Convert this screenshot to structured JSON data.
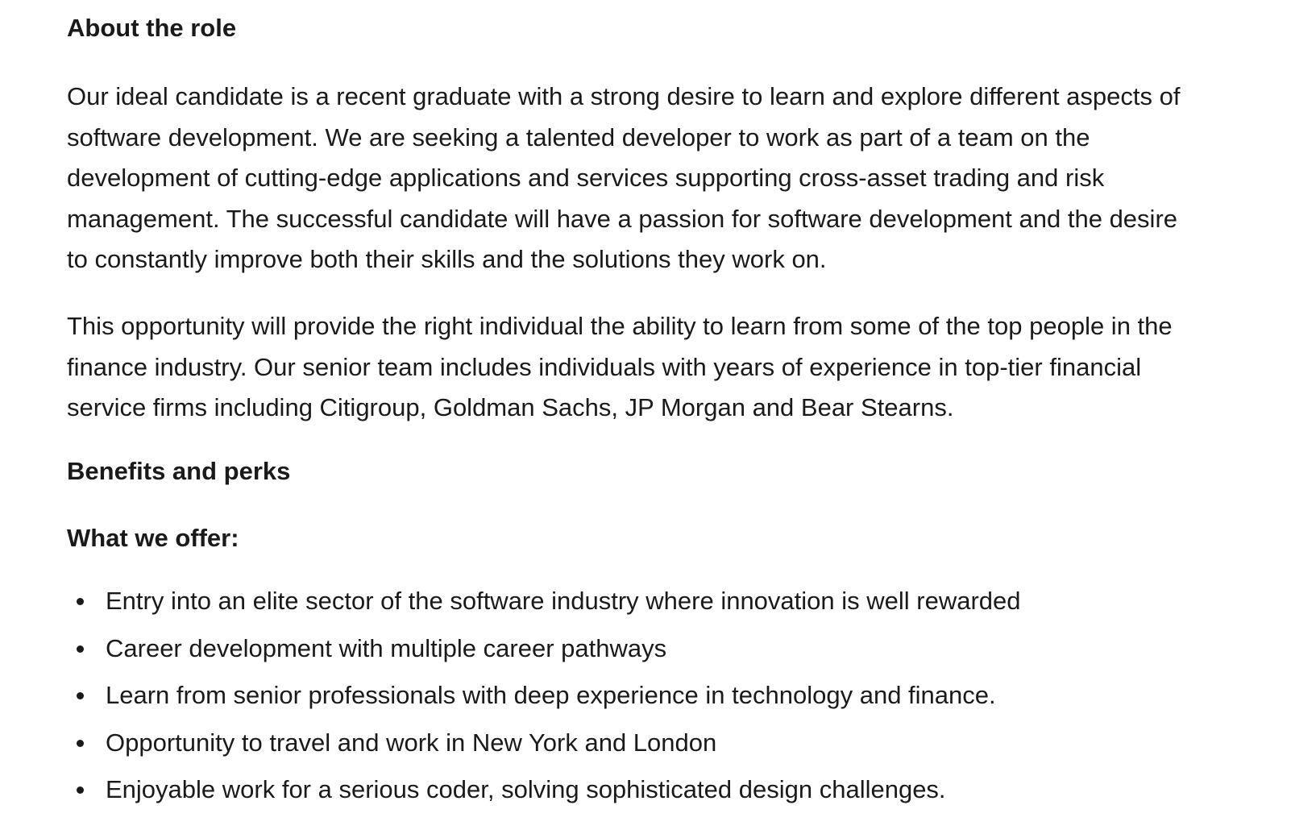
{
  "about": {
    "heading": "About the role",
    "paragraph1_lines": [
      "Our ideal candidate is a recent graduate with a strong desire to learn and explore different aspects of",
      "software development. We are seeking a talented developer to work as part of a team on the",
      "development of cutting-edge applications and services supporting cross-asset trading and risk",
      "management. The successful candidate will have a passion for software development and the desire",
      "to constantly improve both their skills and the solutions they work on."
    ],
    "paragraph2_lines": [
      "This opportunity will provide the right individual the ability to learn from some of the top people in the",
      "finance industry. Our senior team includes individuals with years of experience in top-tier financial",
      "service firms including Citigroup, Goldman Sachs, JP Morgan and Bear Stearns."
    ]
  },
  "benefits": {
    "heading": "Benefits and perks",
    "subheading": "What we offer:",
    "items": [
      "Entry into an elite sector of the software industry where innovation is well rewarded",
      "Career development with multiple career pathways",
      "Learn from senior professionals with deep experience in technology and finance.",
      "Opportunity to travel and work in New York and London",
      "Enjoyable work for a serious coder, solving sophisticated design challenges."
    ]
  }
}
